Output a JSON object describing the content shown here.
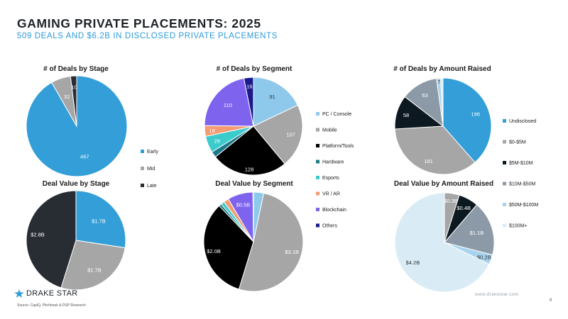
{
  "header": {
    "title": "GAMING PRIVATE PLACEMENTS: 2025",
    "subtitle": "509 DEALS AND $6.2B IN DISCLOSED PRIVATE PLACEMENTS"
  },
  "footer": {
    "logo_text": "DRAKE STAR",
    "source": "Source: CapIQ, Pitchbook & DSP Research",
    "website": "www.drakestar.com",
    "page_number": "8"
  },
  "colors": {
    "early": "#339ed8",
    "mid": "#a6a6a6",
    "late": "#282c33",
    "pc_console": "#8ec9ec",
    "mobile": "#a6a6a6",
    "platform_tools": "#000000",
    "hardware": "#1c7a8a",
    "esports": "#3ccbcb",
    "vr_ar": "#f49b72",
    "blockchain": "#7e63ef",
    "others": "#1a1a8c",
    "undisclosed": "#339ed8",
    "amt_0_5": "#a6a6a6",
    "amt_5_10": "#0d1920",
    "amt_10_50": "#8c9aa8",
    "amt_50_100": "#a8d3ec",
    "amt_100_plus": "#d9ecf6"
  },
  "legends": [
    {
      "key": "stage",
      "items": [
        {
          "label": "Early",
          "color": "#339ed8"
        },
        {
          "label": "Mid",
          "color": "#a6a6a6"
        },
        {
          "label": "Late",
          "color": "#282c33"
        }
      ]
    },
    {
      "key": "segment",
      "items": [
        {
          "label": "PC / Console",
          "color": "#8ec9ec"
        },
        {
          "label": "Mobile",
          "color": "#a6a6a6"
        },
        {
          "label": "Platform/Tools",
          "color": "#000000"
        },
        {
          "label": "Hardware",
          "color": "#1c7a8a"
        },
        {
          "label": "Esports",
          "color": "#3ccbcb"
        },
        {
          "label": "VR / AR",
          "color": "#f49b72"
        },
        {
          "label": "Blockchain",
          "color": "#7e63ef"
        },
        {
          "label": "Others",
          "color": "#1a1a8c"
        }
      ]
    },
    {
      "key": "amount",
      "items": [
        {
          "label": "Undisclosed",
          "color": "#339ed8"
        },
        {
          "label": "$0-$5M",
          "color": "#a6a6a6"
        },
        {
          "label": "$5M-$10M",
          "color": "#0d1920"
        },
        {
          "label": "$10M-$50M",
          "color": "#8c9aa8"
        },
        {
          "label": "$50M-$100M",
          "color": "#a8d3ec"
        },
        {
          "label": "$100M+",
          "color": "#d9ecf6"
        }
      ]
    }
  ],
  "chart_data": [
    {
      "type": "pie",
      "title": "# of Deals by Stage",
      "slices": [
        {
          "name": "Early",
          "value": 467,
          "label": "467",
          "color": "#339ed8"
        },
        {
          "name": "Mid",
          "value": 32,
          "label": "32",
          "color": "#a6a6a6"
        },
        {
          "name": "Late",
          "value": 10,
          "label": "10",
          "color": "#282c33"
        }
      ]
    },
    {
      "type": "pie",
      "title": "# of Deals by Segment",
      "slices": [
        {
          "name": "PC / Console",
          "value": 91,
          "label": "91",
          "color": "#8ec9ec"
        },
        {
          "name": "Mobile",
          "value": 107,
          "label": "107",
          "color": "#a6a6a6"
        },
        {
          "name": "Platform/Tools",
          "value": 128,
          "label": "128",
          "color": "#000000"
        },
        {
          "name": "Hardware",
          "value": 10,
          "label": "",
          "color": "#1c7a8a"
        },
        {
          "name": "Esports",
          "value": 28,
          "label": "28",
          "color": "#3ccbcb"
        },
        {
          "name": "VR / AR",
          "value": 18,
          "label": "18",
          "color": "#f49b72"
        },
        {
          "name": "Blockchain",
          "value": 110,
          "label": "110",
          "color": "#7e63ef"
        },
        {
          "name": "Others",
          "value": 16,
          "label": "16",
          "color": "#1a1a8c"
        }
      ]
    },
    {
      "type": "pie",
      "title": "# of Deals by Amount Raised",
      "slices": [
        {
          "name": "Undisclosed",
          "value": 196,
          "label": "196",
          "color": "#339ed8"
        },
        {
          "name": "$0-$5M",
          "value": 181,
          "label": "181",
          "color": "#a6a6a6"
        },
        {
          "name": "$5M-$10M",
          "value": 58,
          "label": "58",
          "color": "#0d1920"
        },
        {
          "name": "$10M-$50M",
          "value": 63,
          "label": "63",
          "color": "#8c9aa8"
        },
        {
          "name": "$50M-$100M",
          "value": 7,
          "label": "7",
          "color": "#a8d3ec"
        },
        {
          "name": "$100M+",
          "value": 4,
          "label": "",
          "color": "#d9ecf6"
        }
      ]
    },
    {
      "type": "pie",
      "title": "Deal Value by Stage",
      "slices": [
        {
          "name": "Early",
          "value": 1.7,
          "label": "$1.7B",
          "color": "#339ed8"
        },
        {
          "name": "Mid",
          "value": 1.7,
          "label": "$1.7B",
          "color": "#a6a6a6"
        },
        {
          "name": "Late",
          "value": 2.8,
          "label": "$2.8B",
          "color": "#282c33"
        }
      ]
    },
    {
      "type": "pie",
      "title": "Deal Value by Segment",
      "slices": [
        {
          "name": "PC / Console",
          "value": 0.2,
          "label": "",
          "color": "#8ec9ec"
        },
        {
          "name": "Mobile",
          "value": 3.1,
          "label": "$3.1B",
          "color": "#a6a6a6"
        },
        {
          "name": "Platform/Tools",
          "value": 2.0,
          "label": "$2.0B",
          "color": "#000000"
        },
        {
          "name": "Hardware",
          "value": 0.05,
          "label": "",
          "color": "#1c7a8a"
        },
        {
          "name": "Esports",
          "value": 0.07,
          "label": "",
          "color": "#3ccbcb"
        },
        {
          "name": "VR / AR",
          "value": 0.1,
          "label": "",
          "color": "#f49b72"
        },
        {
          "name": "Blockchain",
          "value": 0.5,
          "label": "$0.5B",
          "color": "#7e63ef"
        },
        {
          "name": "Others",
          "value": 0.01,
          "label": "",
          "color": "#1a1a8c"
        }
      ]
    },
    {
      "type": "pie",
      "title": "Deal Value by Amount Raised",
      "slices": [
        {
          "name": "$0-$5M",
          "value": 0.3,
          "label": "$0.3B",
          "color": "#a6a6a6"
        },
        {
          "name": "$5M-$10M",
          "value": 0.4,
          "label": "$0.4B",
          "color": "#0d1920"
        },
        {
          "name": "$10M-$50M",
          "value": 1.1,
          "label": "$1.1B",
          "color": "#8c9aa8"
        },
        {
          "name": "$50M-$100M",
          "value": 0.2,
          "label": "$0.2B",
          "color": "#a8d3ec"
        },
        {
          "name": "$100M+",
          "value": 4.2,
          "label": "$4.2B",
          "color": "#d9ecf6"
        }
      ]
    }
  ]
}
